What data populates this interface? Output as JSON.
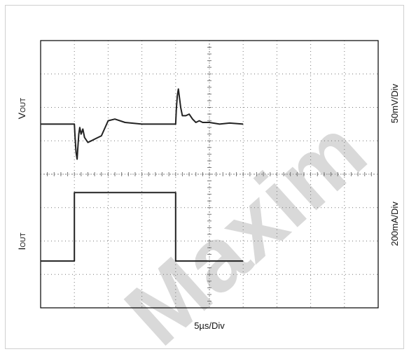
{
  "chart_data": {
    "type": "line",
    "x_divisions": 10,
    "y_divisions": 8,
    "grid": true,
    "xlabel": "5µs/Div",
    "series": [
      {
        "name": "VOUT",
        "label_main": "V",
        "label_sub": "OUT",
        "scale": "50mV/Div",
        "x": [
          0,
          1.0,
          1.02,
          1.05,
          1.08,
          1.1,
          1.13,
          1.16,
          1.2,
          1.25,
          1.3,
          1.4,
          1.5,
          1.6,
          1.8,
          2.0,
          2.2,
          2.5,
          3.0,
          3.5,
          4.0,
          4.02,
          4.05,
          4.08,
          4.1,
          4.15,
          4.2,
          4.3,
          4.4,
          4.5,
          4.6,
          4.7,
          4.8,
          5.0,
          5.3,
          5.6,
          6.0
        ],
        "y": [
          0,
          0,
          -0.4,
          -0.85,
          -1.05,
          -0.75,
          -0.3,
          -0.1,
          -0.3,
          -0.15,
          -0.4,
          -0.55,
          -0.5,
          -0.45,
          -0.35,
          0.1,
          0.15,
          0.05,
          0,
          0,
          0,
          0.45,
          0.85,
          1.05,
          0.9,
          0.5,
          0.25,
          0.25,
          0.3,
          0.15,
          0.05,
          0.1,
          0.05,
          0.05,
          0.0,
          0.03,
          0.0
        ]
      },
      {
        "name": "IOUT",
        "label_main": "I",
        "label_sub": "OUT",
        "scale": "200mA/Div",
        "x": [
          0,
          1.0,
          1.0,
          4.0,
          4.0,
          6.0
        ],
        "y": [
          -2.6,
          -2.6,
          -0.55,
          -0.55,
          -2.6,
          -2.6
        ]
      }
    ],
    "watermark": "Maxim",
    "colors": {
      "trace": "#222222",
      "grid": "#777777",
      "frame": "#000000",
      "watermark": "#d9d9d9"
    }
  }
}
